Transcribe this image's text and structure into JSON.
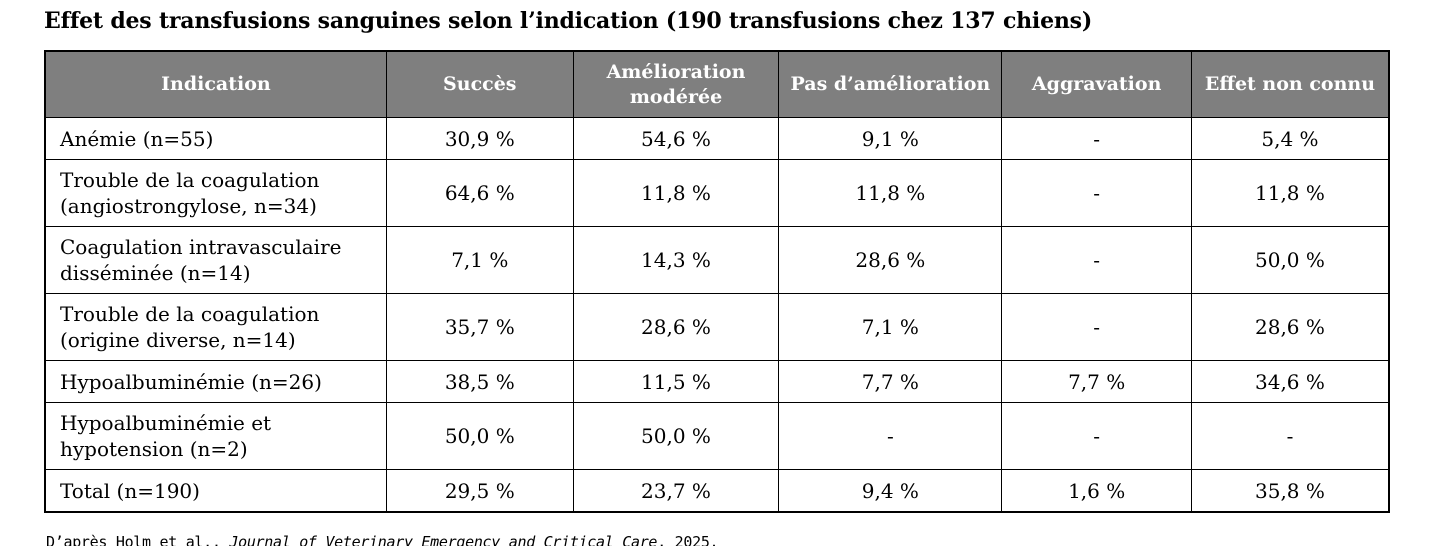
{
  "title": "Effet des transfusions sanguines selon l’indication (190 transfusions chez 137 chiens)",
  "table": {
    "columns": [
      "Indication",
      "Succès",
      "Amélioration modérée",
      "Pas d’amélioration",
      "Aggravation",
      "Effet non connu"
    ],
    "rows": [
      {
        "indication": "Anémie (n=55)",
        "values": [
          "30,9 %",
          "54,6 %",
          "9,1 %",
          "-",
          "5,4 %"
        ]
      },
      {
        "indication": "Trouble de la coagulation (angiostrongylose, n=34)",
        "values": [
          "64,6 %",
          "11,8 %",
          "11,8 %",
          "-",
          "11,8 %"
        ]
      },
      {
        "indication": "Coagulation intravasculaire disséminée (n=14)",
        "values": [
          "7,1 %",
          "14,3 %",
          "28,6 %",
          "-",
          "50,0 %"
        ]
      },
      {
        "indication": "Trouble de la coagulation (origine diverse, n=14)",
        "values": [
          "35,7 %",
          "28,6 %",
          "7,1 %",
          "-",
          "28,6 %"
        ]
      },
      {
        "indication": "Hypoalbuminémie (n=26)",
        "values": [
          "38,5 %",
          "11,5 %",
          "7,7 %",
          "7,7 %",
          "34,6 %"
        ]
      },
      {
        "indication": "Hypoalbuminémie et hypotension (n=2)",
        "values": [
          "50,0 %",
          "50,0 %",
          "-",
          "-",
          "-"
        ]
      },
      {
        "indication": "Total (n=190)",
        "values": [
          "29,5 %",
          "23,7 %",
          "9,4 %",
          "1,6 %",
          "35,8 %"
        ]
      }
    ]
  },
  "footer": {
    "prefix": "D’après Holm et al., ",
    "journal": "Journal of Veterinary Emergency and Critical Care",
    "suffix": ", 2025."
  }
}
